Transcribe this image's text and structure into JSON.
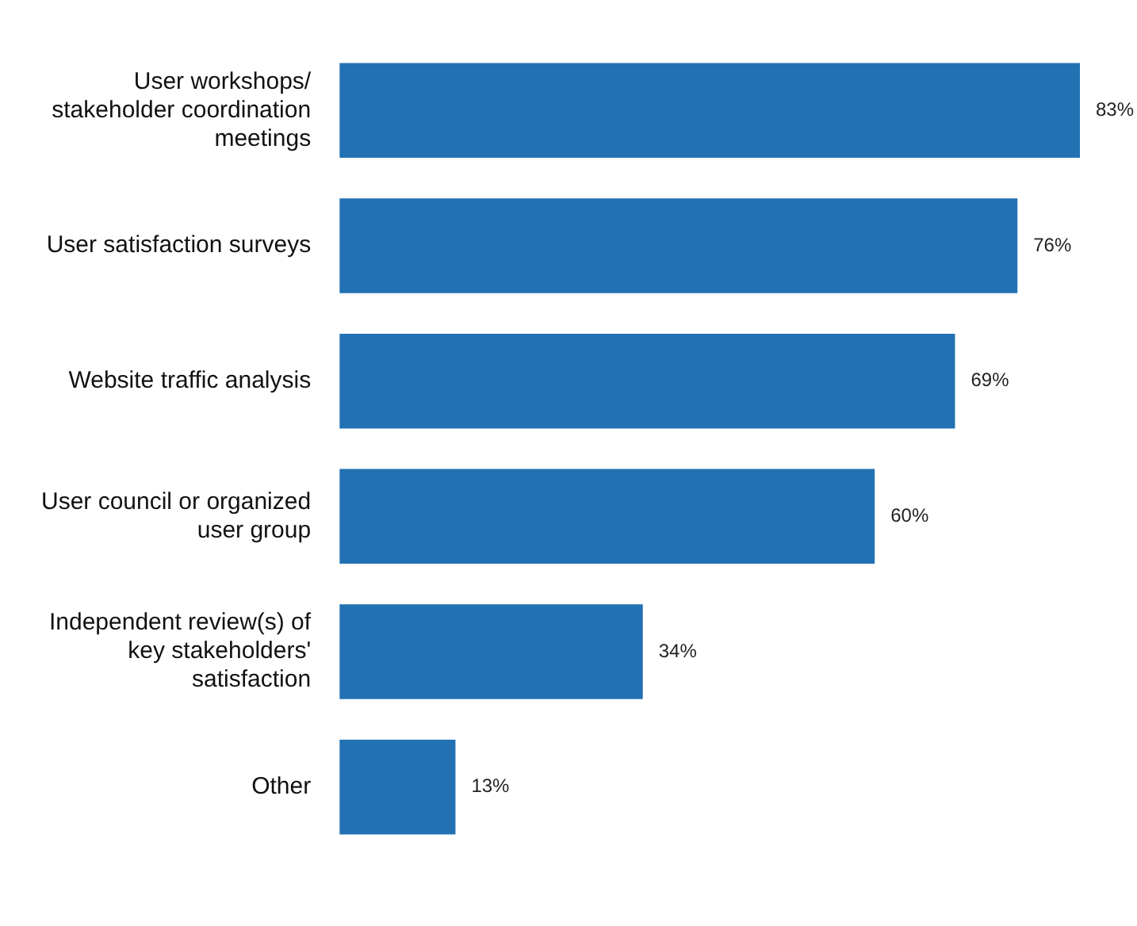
{
  "chart_data": {
    "type": "bar",
    "orientation": "horizontal",
    "categories": [
      "User workshops/ stakeholder coordination meetings",
      "User satisfaction surveys",
      "Website traffic analysis",
      "User council or organized user group",
      "Independent review(s) of key stakeholders' satisfaction",
      "Other"
    ],
    "values": [
      83,
      76,
      69,
      60,
      34,
      13
    ],
    "value_labels": [
      "83%",
      "76%",
      "69%",
      "60%",
      "34%",
      "13%"
    ],
    "color": "#2271b3",
    "grid": false,
    "legend": false,
    "tick_labels": "y"
  }
}
